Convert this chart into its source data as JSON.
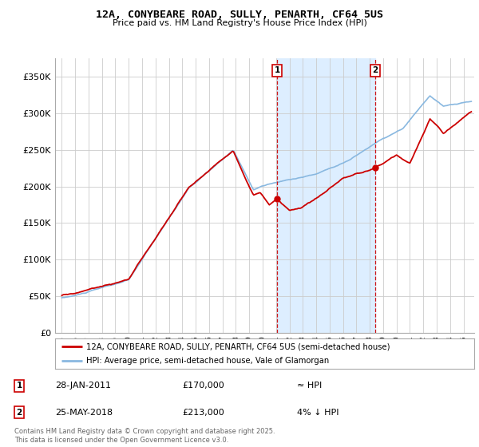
{
  "title_line1": "12A, CONYBEARE ROAD, SULLY, PENARTH, CF64 5US",
  "title_line2": "Price paid vs. HM Land Registry's House Price Index (HPI)",
  "legend_property_label": "12A, CONYBEARE ROAD, SULLY, PENARTH, CF64 5US (semi-detached house)",
  "legend_hpi_label": "HPI: Average price, semi-detached house, Vale of Glamorgan",
  "annotation1_date": "28-JAN-2011",
  "annotation1_price": "£170,000",
  "annotation1_hpi": "≈ HPI",
  "annotation2_date": "25-MAY-2018",
  "annotation2_price": "£213,000",
  "annotation2_hpi": "4% ↓ HPI",
  "copyright_text": "Contains HM Land Registry data © Crown copyright and database right 2025.\nThis data is licensed under the Open Government Licence v3.0.",
  "property_color": "#cc0000",
  "hpi_color": "#89b8e0",
  "hpi_fill_color": "#ddeeff",
  "background_color": "#ffffff",
  "grid_color": "#cccccc",
  "annotation_line_color": "#cc0000",
  "ylim_min": 0,
  "ylim_max": 375000,
  "sale1_year": 2011.08,
  "sale1_price": 170000,
  "sale2_year": 2018.42,
  "sale2_price": 213000,
  "xlim_min": 1994.5,
  "xlim_max": 2025.8
}
